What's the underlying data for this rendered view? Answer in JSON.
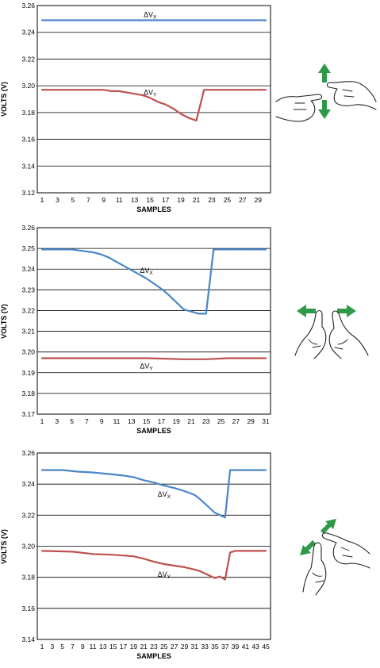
{
  "chart_data": [
    {
      "type": "line",
      "gesture": "vertical-swipe",
      "xlabel": "SAMPLES",
      "ylabel": "VOLTS (V)",
      "ylim": [
        3.12,
        3.26
      ],
      "yticks": [
        "3.12",
        "3.14",
        "3.16",
        "3.18",
        "3.20",
        "3.22",
        "3.24",
        "3.26"
      ],
      "xlim": [
        1,
        30
      ],
      "xticks": [
        "1",
        "3",
        "5",
        "7",
        "9",
        "11",
        "13",
        "15",
        "17",
        "19",
        "21",
        "23",
        "25",
        "27",
        "29"
      ],
      "grid": true,
      "series": [
        {
          "name": "ΔV",
          "subscript": "X",
          "color": "#4a86c8",
          "x": [
            1,
            10,
            20,
            30
          ],
          "y": [
            3.249,
            3.249,
            3.249,
            3.249
          ]
        },
        {
          "name": "ΔV",
          "subscript": "Y",
          "color": "#c0504d",
          "x": [
            1,
            5,
            9,
            10,
            11,
            12,
            13,
            14,
            15,
            16,
            17,
            18,
            19,
            20,
            21,
            22,
            23,
            26,
            30
          ],
          "y": [
            3.197,
            3.197,
            3.197,
            3.196,
            3.196,
            3.195,
            3.194,
            3.193,
            3.191,
            3.188,
            3.186,
            3.183,
            3.179,
            3.176,
            3.174,
            3.197,
            3.197,
            3.197,
            3.197
          ]
        }
      ]
    },
    {
      "type": "line",
      "gesture": "horizontal-spread",
      "xlabel": "SAMPLES",
      "ylabel": "VOLTS (V)",
      "ylim": [
        3.17,
        3.26
      ],
      "yticks": [
        "3.17",
        "3.18",
        "3.19",
        "3.20",
        "3.21",
        "3.22",
        "3.23",
        "3.24",
        "3.25",
        "3.26"
      ],
      "xlim": [
        1,
        31
      ],
      "xticks": [
        "1",
        "3",
        "5",
        "7",
        "9",
        "11",
        "13",
        "15",
        "17",
        "19",
        "21",
        "23",
        "25",
        "27",
        "29",
        "31"
      ],
      "grid": true,
      "series": [
        {
          "name": "ΔV",
          "subscript": "X",
          "color": "#4a86c8",
          "x": [
            1,
            3,
            5,
            6,
            7,
            8,
            9,
            10,
            11,
            12,
            13,
            14,
            15,
            16,
            17,
            18,
            19,
            20,
            21,
            22,
            23,
            24,
            25,
            28,
            31
          ],
          "y": [
            3.2495,
            3.2495,
            3.2495,
            3.249,
            3.2485,
            3.248,
            3.247,
            3.2455,
            3.2435,
            3.2415,
            3.2395,
            3.2375,
            3.2355,
            3.233,
            3.2305,
            3.2275,
            3.224,
            3.2205,
            3.2195,
            3.2185,
            3.2185,
            3.2495,
            3.2495,
            3.2495,
            3.2495
          ]
        },
        {
          "name": "ΔV",
          "subscript": "Y",
          "color": "#c0504d",
          "x": [
            1,
            8,
            15,
            20,
            23,
            26,
            31
          ],
          "y": [
            3.197,
            3.197,
            3.197,
            3.1965,
            3.1965,
            3.197,
            3.197
          ]
        }
      ]
    },
    {
      "type": "line",
      "gesture": "diagonal-spread",
      "xlabel": "SAMPLES",
      "ylabel": "VOLTS (V)",
      "ylim": [
        3.14,
        3.26
      ],
      "yticks": [
        "3.14",
        "3.16",
        "3.18",
        "3.20",
        "3.22",
        "3.24",
        "3.26"
      ],
      "xlim": [
        1,
        45
      ],
      "xticks": [
        "1",
        "3",
        "5",
        "7",
        "9",
        "11",
        "13",
        "15",
        "17",
        "19",
        "21",
        "23",
        "25",
        "27",
        "29",
        "31",
        "33",
        "35",
        "37",
        "39",
        "41",
        "43",
        "45"
      ],
      "grid": true,
      "series": [
        {
          "name": "ΔV",
          "subscript": "X",
          "color": "#4a86c8",
          "x": [
            1,
            5,
            8,
            11,
            14,
            17,
            19,
            21,
            23,
            25,
            27,
            29,
            31,
            32,
            33,
            34,
            35,
            36,
            37,
            38,
            39,
            45
          ],
          "y": [
            3.249,
            3.249,
            3.248,
            3.2475,
            3.2465,
            3.2455,
            3.2445,
            3.2425,
            3.241,
            3.239,
            3.2375,
            3.2355,
            3.233,
            3.2305,
            3.2275,
            3.2245,
            3.2215,
            3.22,
            3.2185,
            3.249,
            3.249,
            3.249
          ]
        },
        {
          "name": "ΔV",
          "subscript": "Y",
          "color": "#c0504d",
          "x": [
            1,
            7,
            11,
            15,
            19,
            21,
            23,
            25,
            27,
            29,
            31,
            32,
            33,
            34,
            35,
            36,
            37,
            38,
            39,
            45
          ],
          "y": [
            3.197,
            3.1965,
            3.195,
            3.1945,
            3.1935,
            3.192,
            3.19,
            3.1885,
            3.1875,
            3.1865,
            3.185,
            3.184,
            3.1825,
            3.181,
            3.1795,
            3.1805,
            3.1785,
            3.196,
            3.197,
            3.197
          ]
        }
      ]
    }
  ]
}
